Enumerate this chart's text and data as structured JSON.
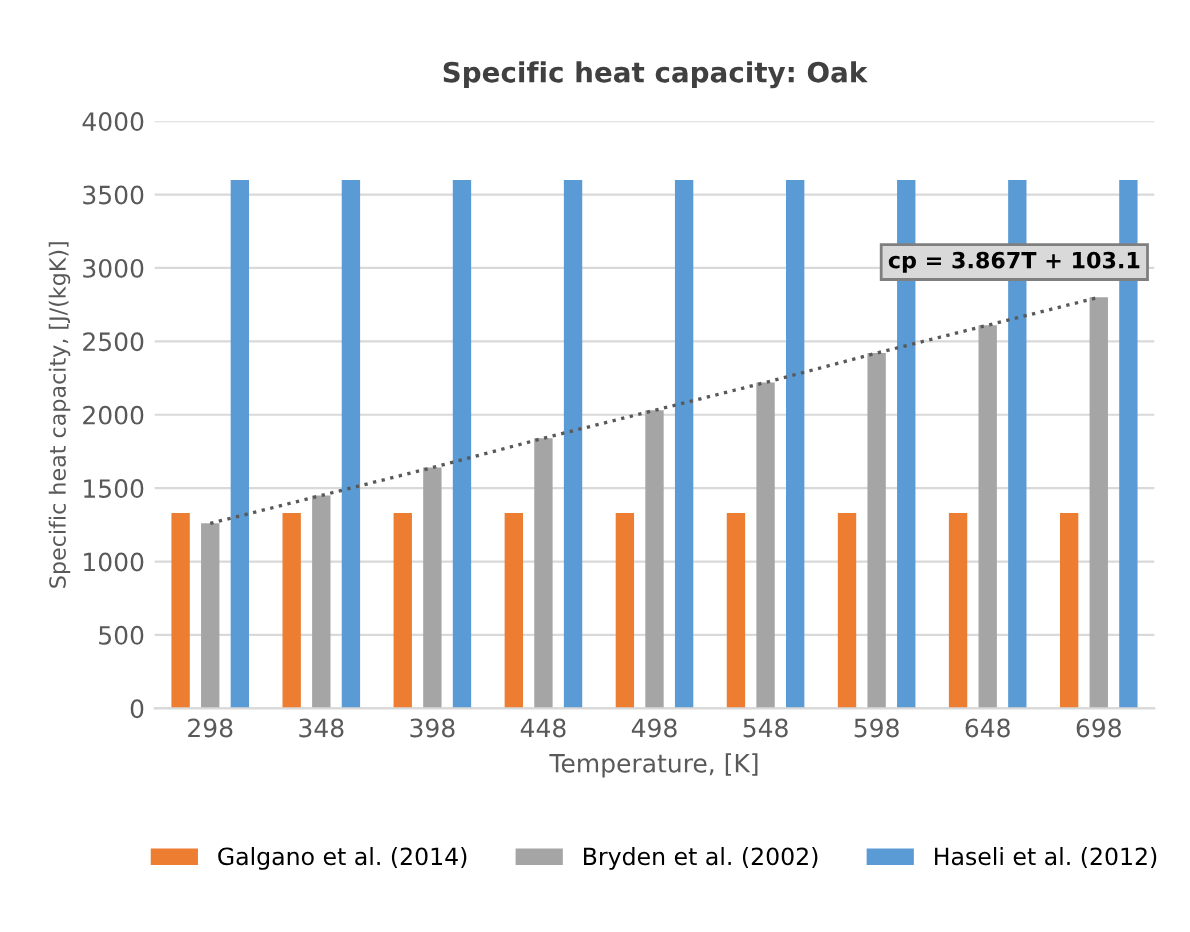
{
  "chart_data": {
    "type": "bar",
    "title": "Specific heat capacity: Oak",
    "xlabel": "Temperature, [K]",
    "ylabel": "Specific heat capacity, [J/(kgK)]",
    "categories": [
      "298",
      "348",
      "398",
      "448",
      "498",
      "548",
      "598",
      "648",
      "698"
    ],
    "series": [
      {
        "name": "Galgano et al. (2014)",
        "color": "#ed7d31",
        "values": [
          1330,
          1330,
          1330,
          1330,
          1330,
          1330,
          1330,
          1330,
          1330
        ]
      },
      {
        "name": "Bryden et al. (2002)",
        "color": "#a5a5a5",
        "values": [
          1260,
          1450,
          1640,
          1840,
          2030,
          2220,
          2420,
          2610,
          2800
        ]
      },
      {
        "name": "Haseli et al. (2012)",
        "color": "#5b9bd5",
        "values": [
          3600,
          3600,
          3600,
          3600,
          3600,
          3600,
          3600,
          3600,
          3600
        ]
      },
      {
        "type": "line",
        "color": "#595959",
        "line_style": "dotted",
        "values": [
          1260,
          1450,
          1640,
          1840,
          2030,
          2220,
          2420,
          2610,
          2800
        ]
      }
    ],
    "annotations": [
      "cp = 3.867T + 103.1"
    ],
    "ylim": [
      0,
      4000
    ],
    "yticks": [
      0,
      500,
      1000,
      1500,
      2000,
      2500,
      3000,
      3500,
      4000
    ],
    "grid": "y",
    "legend": "bottom"
  }
}
